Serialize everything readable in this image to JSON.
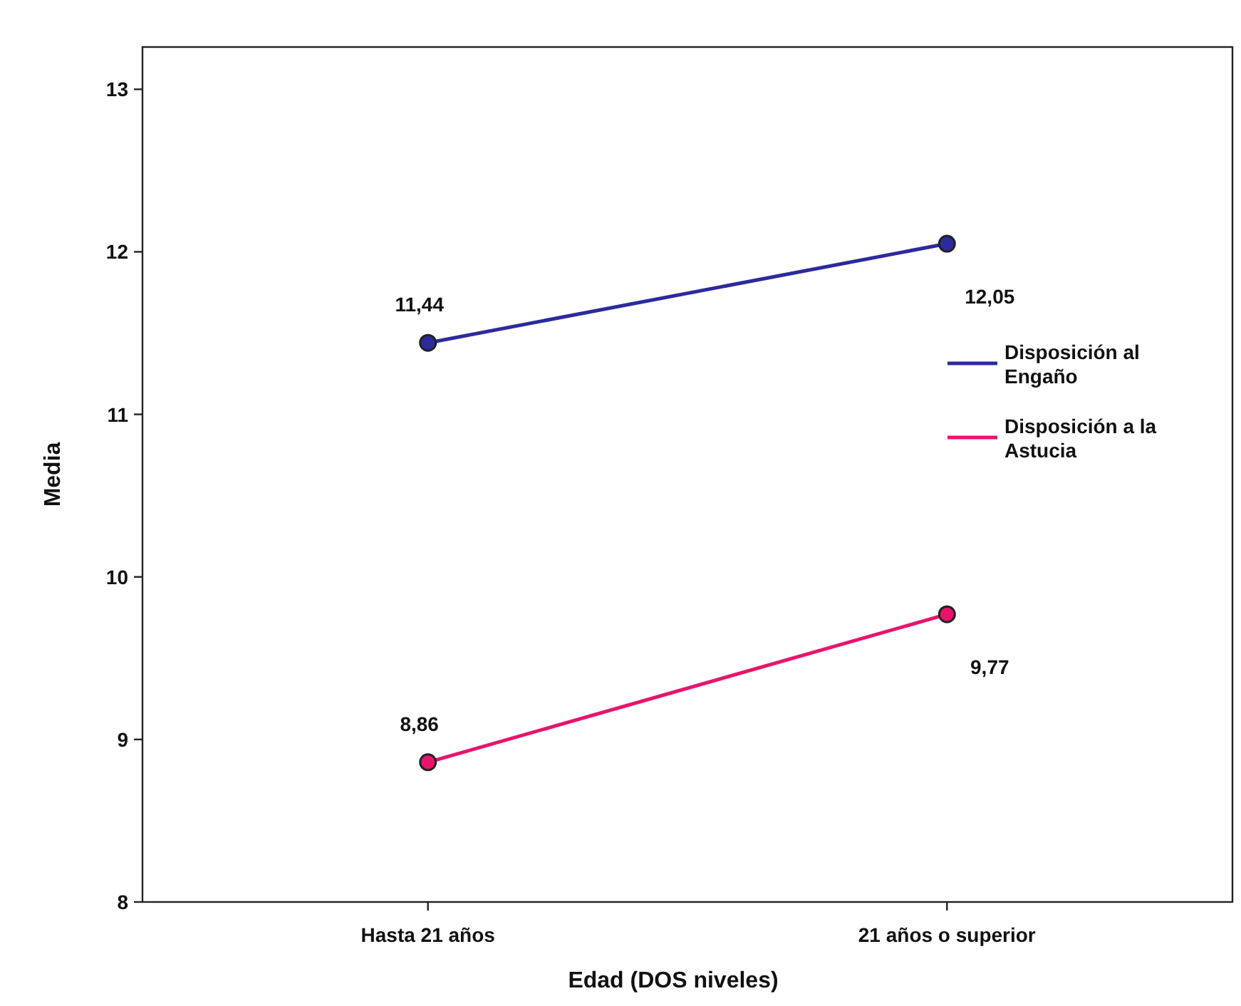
{
  "chart_data": {
    "type": "line",
    "xlabel": "Edad (DOS niveles)",
    "ylabel": "Media",
    "categories": [
      "Hasta 21 años",
      "21 años o superior"
    ],
    "series": [
      {
        "name": "Disposición al Engaño",
        "color": "#2b2b9e",
        "values": [
          11.44,
          12.05
        ],
        "value_labels": [
          "11,44",
          "12,05"
        ]
      },
      {
        "name": "Disposición a la Astucia",
        "color": "#e8146c",
        "values": [
          8.86,
          9.77
        ],
        "value_labels": [
          "8,86",
          "9,77"
        ]
      }
    ],
    "ylim": [
      8,
      13.26
    ],
    "yticks": [
      8,
      9,
      10,
      11,
      12,
      13
    ],
    "grid": false,
    "legend": "right",
    "marker": "circle",
    "line_style": "solid"
  }
}
